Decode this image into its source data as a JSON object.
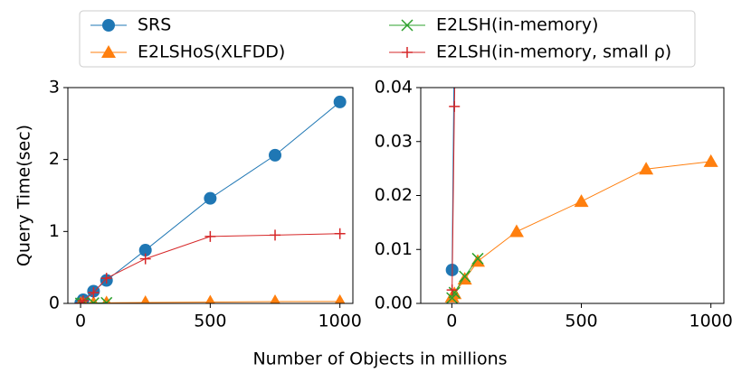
{
  "xlabel": "Number of Objects in millions",
  "x": [
    1,
    10,
    50,
    100,
    250,
    500,
    750,
    1000
  ],
  "series": [
    {
      "name": "SRS",
      "color": "#1f77b4",
      "marker": "circle",
      "values": [
        0.0062,
        0.05,
        0.17,
        0.32,
        0.74,
        1.46,
        2.06,
        2.8
      ]
    },
    {
      "name": "E2LSHoS(XLFDD)",
      "color": "#ff7f0e",
      "marker": "triangle",
      "values": [
        0.0012,
        0.0018,
        0.0045,
        0.0078,
        0.0133,
        0.0189,
        0.0249,
        0.0263
      ]
    },
    {
      "name": "E2LSH(in-memory)",
      "color": "#2ca02c",
      "marker": "x",
      "values": [
        0.001,
        0.002,
        0.005,
        0.0083,
        null,
        null,
        null,
        null
      ]
    },
    {
      "name": "E2LSH(in-memory, small ρ)",
      "color": "#d62728",
      "marker": "plus",
      "values": [
        0.0025,
        0.0365,
        0.15,
        0.35,
        0.62,
        0.93,
        0.95,
        0.97
      ]
    }
  ],
  "chart_data": [
    {
      "type": "line",
      "ylabel": "Query Time(sec)",
      "xlim": [
        -49,
        1050
      ],
      "xticks": [
        0,
        500,
        1000
      ],
      "ylim": [
        0,
        3
      ],
      "yticks": [
        0,
        1,
        2,
        3
      ]
    },
    {
      "type": "line",
      "xlim": [
        -120,
        1050
      ],
      "xticks": [
        0,
        500,
        1000
      ],
      "ylim": [
        0,
        0.04
      ],
      "yticks": [
        {
          "value": 0,
          "label": "0.00"
        },
        0.01,
        0.02,
        0.03,
        0.04
      ]
    }
  ]
}
